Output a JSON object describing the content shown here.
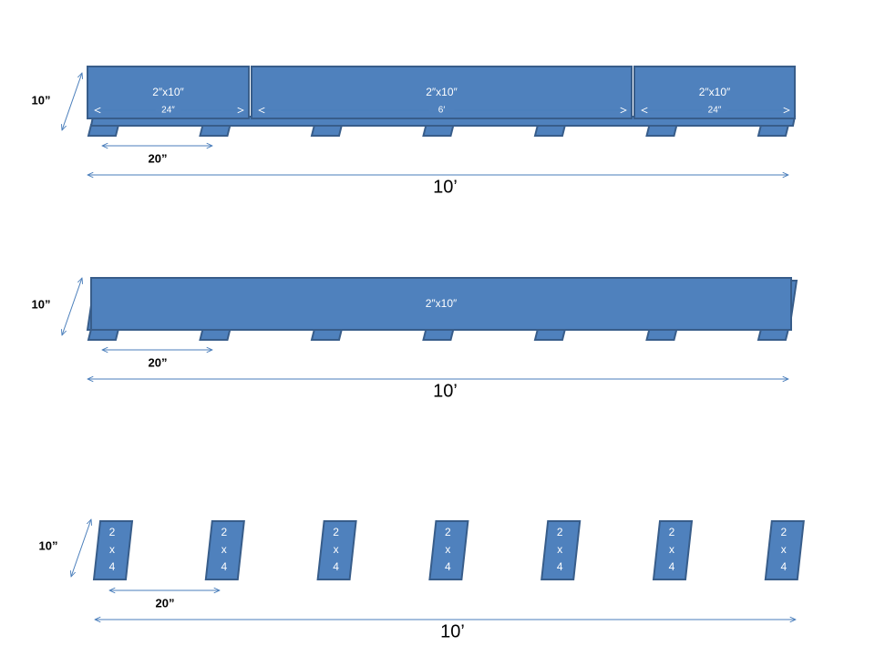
{
  "panels": [
    {
      "height_label": "10”",
      "spacing_label": "20”",
      "length_label": "10’",
      "boards": [
        {
          "label": "2″x10″",
          "length": "24″"
        },
        {
          "label": "2″x10″",
          "length": "6′"
        },
        {
          "label": "2″x10″",
          "length": "24″"
        }
      ]
    },
    {
      "height_label": "10”",
      "spacing_label": "20”",
      "length_label": "10’",
      "boards": [
        {
          "label": "2″x10″"
        }
      ]
    },
    {
      "height_label": "10”",
      "spacing_label": "20”",
      "length_label": "10’",
      "blocks": [
        {
          "lines": [
            "2",
            "x",
            "4"
          ]
        },
        {
          "lines": [
            "2",
            "x",
            "4"
          ]
        },
        {
          "lines": [
            "2",
            "x",
            "4"
          ]
        },
        {
          "lines": [
            "2",
            "x",
            "4"
          ]
        },
        {
          "lines": [
            "2",
            "x",
            "4"
          ]
        },
        {
          "lines": [
            "2",
            "x",
            "4"
          ]
        },
        {
          "lines": [
            "2",
            "x",
            "4"
          ]
        }
      ]
    }
  ]
}
